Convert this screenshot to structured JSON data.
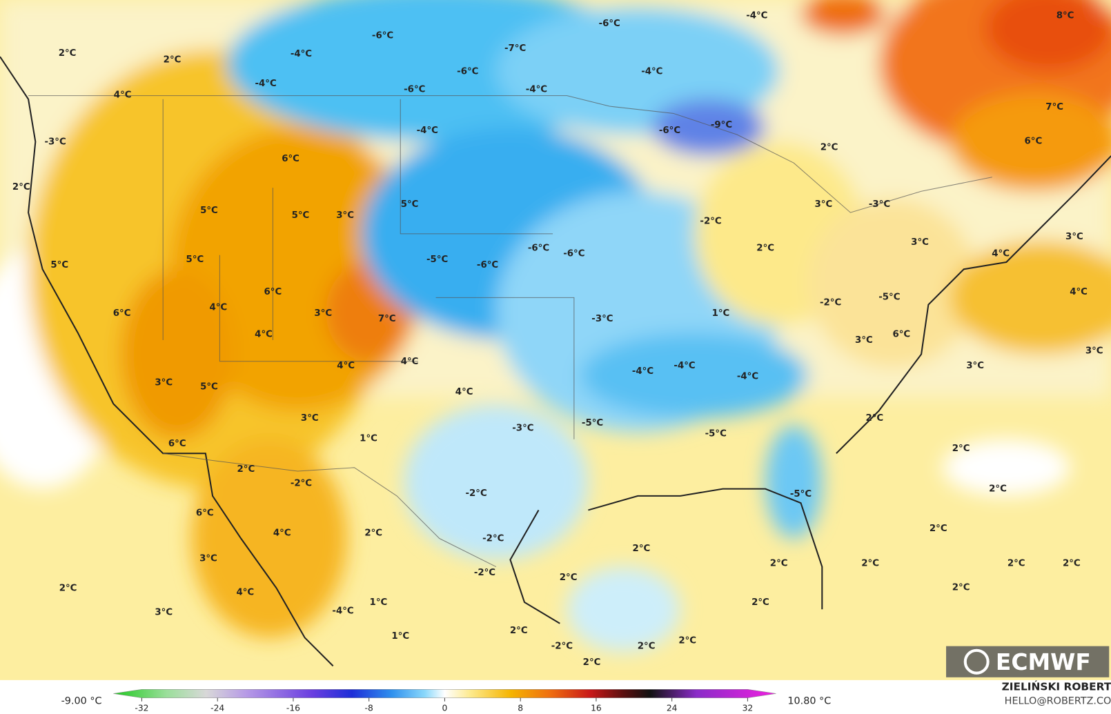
{
  "map_labels": [
    "2°C",
    "2°C",
    "4°C",
    "-6°C",
    "-4°C",
    "-4°C",
    "-6°C",
    "-7°C",
    "-6°C",
    "-6°C",
    "-4°C",
    "-4°C",
    "-4°C",
    "8°C",
    "-3°C",
    "-4°C",
    "-6°C",
    "-9°C",
    "7°C",
    "6°C",
    "2°C",
    "2°C",
    "6°C",
    "5°C",
    "5°C",
    "3°C",
    "5°C",
    "3°C",
    "-3°C",
    "-2°C",
    "3°C",
    "3°C",
    "2°C",
    "4°C",
    "5°C",
    "5°C",
    "-5°C",
    "-6°C",
    "-6°C",
    "-6°C",
    "6°C",
    "4°C",
    "-5°C",
    "-2°C",
    "6°C",
    "4°C",
    "3°C",
    "7°C",
    "1°C",
    "-3°C",
    "6°C",
    "4°C",
    "3°C",
    "3°C",
    "4°C",
    "4°C",
    "-4°C",
    "-4°C",
    "-4°C",
    "3°C",
    "3°C",
    "5°C",
    "4°C",
    "3°C",
    "2°C",
    "-3°C",
    "-5°C",
    "-5°C",
    "1°C",
    "6°C",
    "2°C",
    "2°C",
    "-2°C",
    "2°C",
    "-2°C",
    "-5°C",
    "6°C",
    "4°C",
    "2°C",
    "-2°C",
    "2°C",
    "2°C",
    "3°C",
    "-2°C",
    "2°C",
    "2°C",
    "2°C",
    "2°C",
    "2°C",
    "2°C",
    "2°C",
    "4°C",
    "1°C",
    "2°C",
    "-4°C",
    "3°C",
    "2°C",
    "1°C",
    "-2°C",
    "2°C",
    "2°C",
    "2°C"
  ],
  "colorbar": {
    "min_label": "-9.00 °C",
    "max_label": "10.80 °C",
    "lim": [
      -35,
      35
    ],
    "ticks": [
      -32,
      -24,
      -16,
      -8,
      0,
      8,
      16,
      24,
      32
    ]
  },
  "logo": "ECMWF",
  "credit": {
    "name": "ZIELIŃSKI ROBERT",
    "email": "HELLO@ROBERTZ.CO"
  }
}
